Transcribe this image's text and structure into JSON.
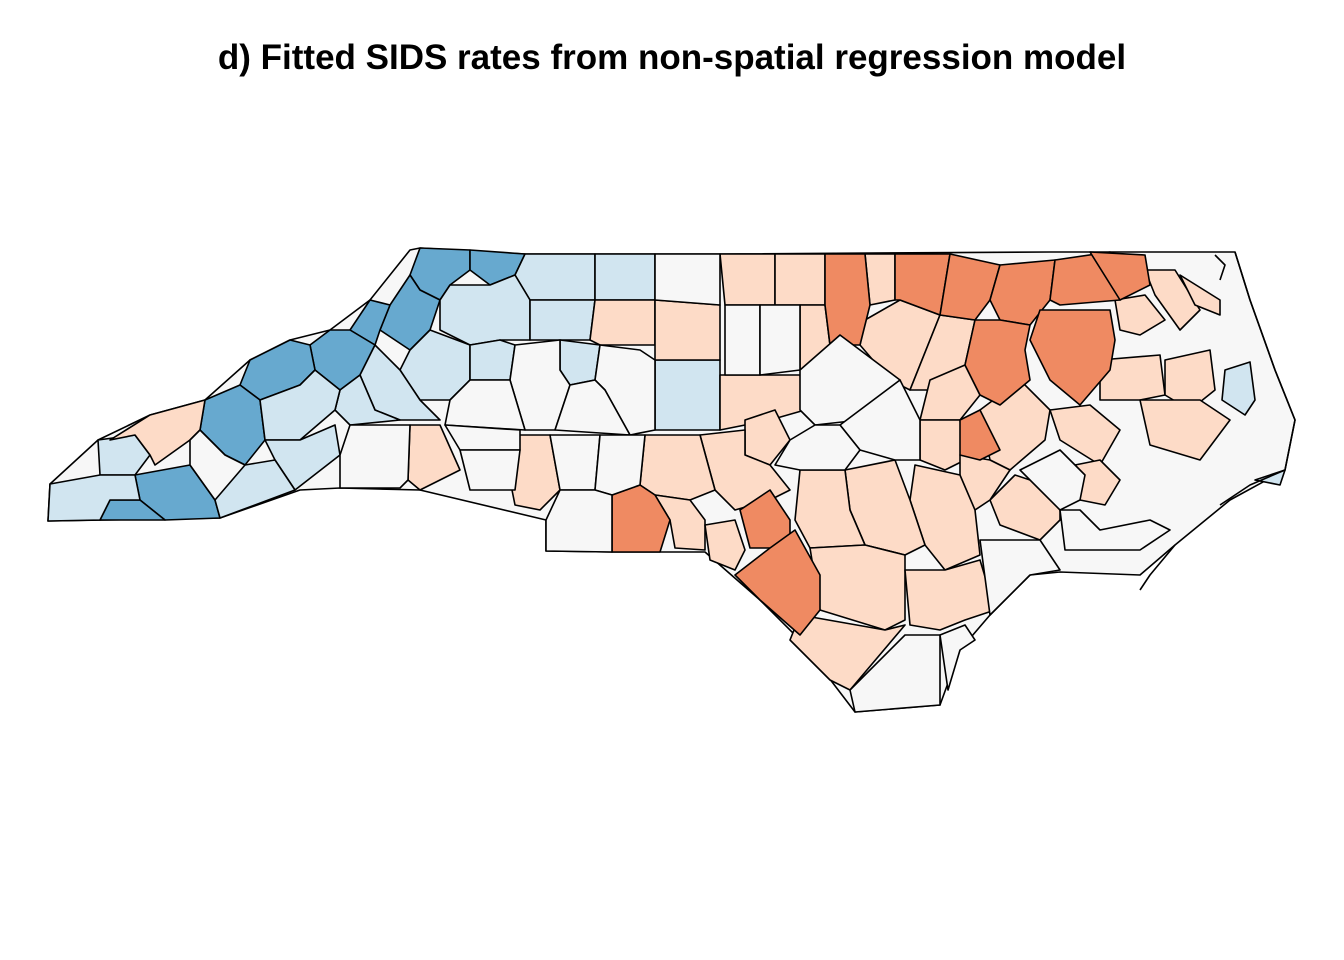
{
  "title": "d) Fitted SIDS rates from non-spatial regression model",
  "palette": {
    "dark_blue": "#67a9cf",
    "light_blue": "#d1e5f0",
    "neutral": "#f7f7f7",
    "light_red": "#fddbc7",
    "dark_red": "#ef8a62",
    "border": "#000000",
    "background": "#ffffff"
  },
  "map": {
    "region": "North Carolina counties",
    "fill_pattern": "blue in western mountains, neutral in piedmont, red in northeastern coastal plain"
  }
}
